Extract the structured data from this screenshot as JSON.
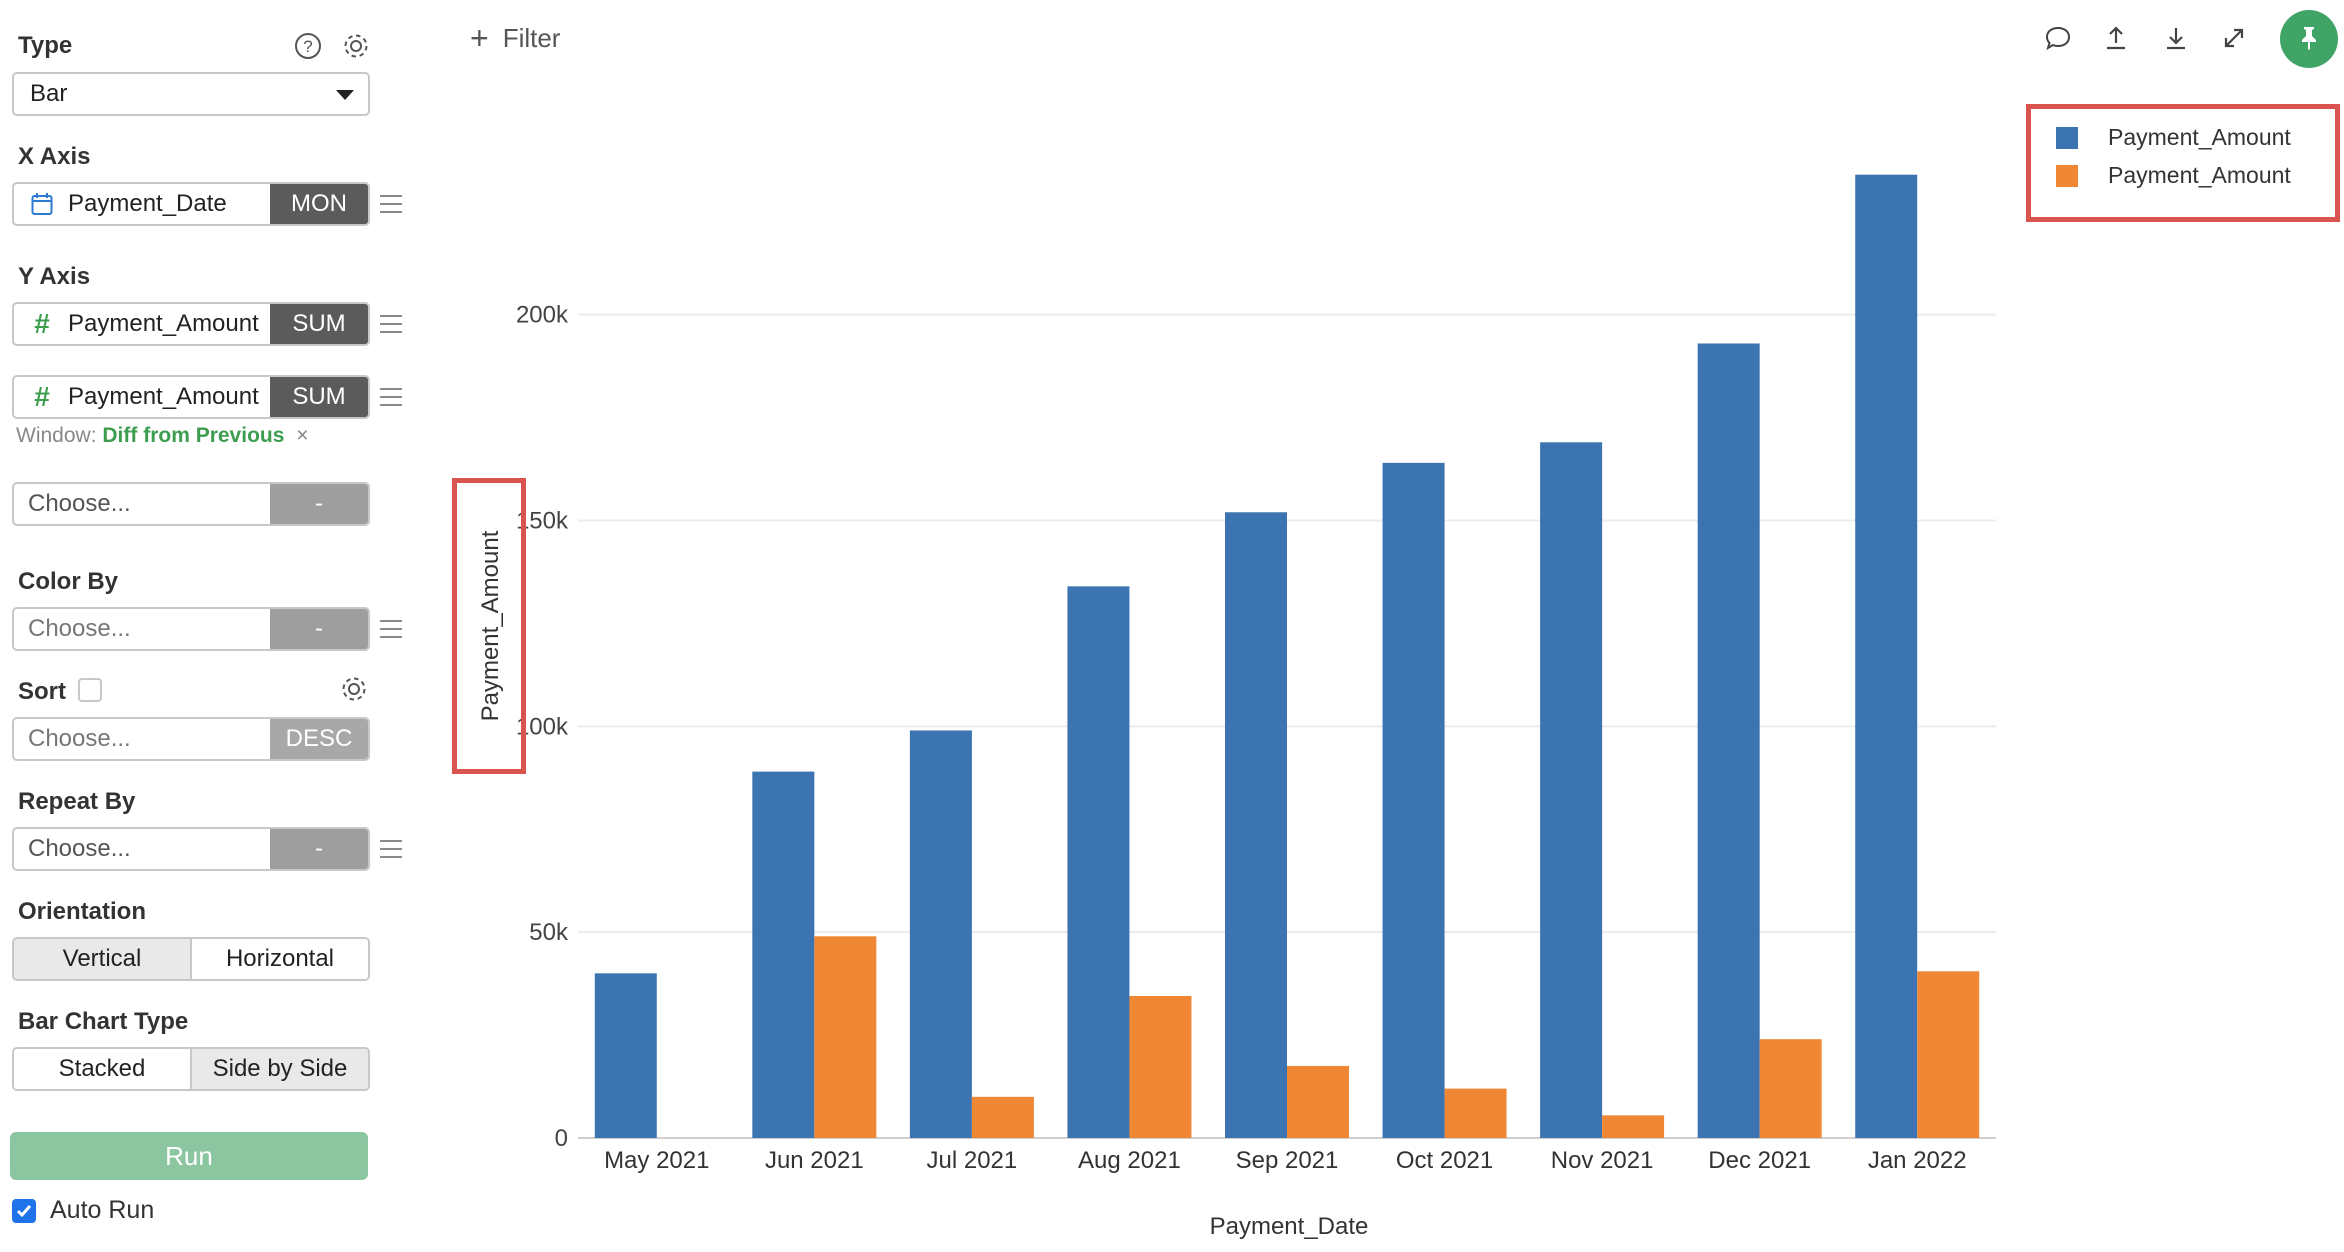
{
  "sidebar": {
    "type_label": "Type",
    "type_value": "Bar",
    "x_axis_label": "X Axis",
    "x_field": {
      "name": "Payment_Date",
      "agg": "MON",
      "icon": "calendar-icon"
    },
    "y_axis_label": "Y Axis",
    "y_fields": [
      {
        "name": "Payment_Amount",
        "agg": "SUM",
        "icon": "hash-icon"
      },
      {
        "name": "Payment_Amount",
        "agg": "SUM",
        "icon": "hash-icon"
      }
    ],
    "window_label": "Window:",
    "window_value": "Diff from Previous",
    "window_remove": "×",
    "y_choose": {
      "placeholder": "Choose...",
      "agg": "-"
    },
    "color_by_label": "Color By",
    "color_by": {
      "placeholder": "Choose...",
      "agg": "-"
    },
    "sort_label": "Sort",
    "sort": {
      "placeholder": "Choose...",
      "agg": "DESC"
    },
    "repeat_by_label": "Repeat By",
    "repeat_by": {
      "placeholder": "Choose...",
      "agg": "-"
    },
    "orientation_label": "Orientation",
    "orientation_options": [
      "Vertical",
      "Horizontal"
    ],
    "bar_type_label": "Bar Chart Type",
    "bar_type_options": [
      "Stacked",
      "Side by Side"
    ],
    "run_label": "Run",
    "auto_run_label": "Auto Run"
  },
  "toolbar": {
    "filter_label": "Filter",
    "icons": [
      "comment-icon",
      "upload-icon",
      "download-icon",
      "expand-icon",
      "pin-icon"
    ]
  },
  "colors": {
    "series1": "#3b74b0",
    "series2": "#ef8734",
    "highlight": "#d9534f",
    "run": "#8bc6a0",
    "accent_green": "#41a467"
  },
  "chart_data": {
    "type": "bar",
    "categories": [
      "May 2021",
      "Jun 2021",
      "Jul 2021",
      "Aug 2021",
      "Sep 2021",
      "Oct 2021",
      "Nov 2021",
      "Dec 2021",
      "Jan 2022"
    ],
    "series": [
      {
        "name": "Payment_Amount",
        "values": [
          40000,
          89000,
          99000,
          134000,
          152000,
          164000,
          169000,
          193000,
          234000
        ]
      },
      {
        "name": "Payment_Amount",
        "values": [
          null,
          49000,
          10000,
          34500,
          17500,
          12000,
          5500,
          24000,
          40500
        ]
      }
    ],
    "xlabel": "Payment_Date",
    "ylabel": "Payment_Amount",
    "yticks": [
      "0",
      "50k",
      "100k",
      "150k",
      "200k"
    ],
    "ylim": [
      0,
      240000
    ],
    "grid": true,
    "legend_position": "top-right"
  }
}
